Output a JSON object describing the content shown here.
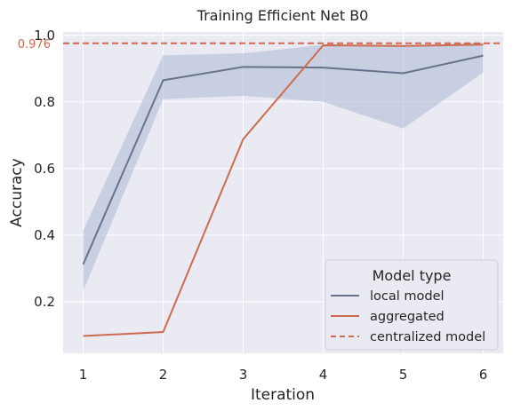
{
  "chart_data": {
    "type": "line",
    "title": "Training Efficient Net B0",
    "xlabel": "Iteration",
    "ylabel": "Accuracy",
    "xlim": [
      0.75,
      6.25
    ],
    "ylim": [
      0.045,
      1.01
    ],
    "x": [
      1,
      2,
      3,
      4,
      5,
      6
    ],
    "x_ticks": [
      1,
      2,
      3,
      4,
      5,
      6
    ],
    "y_ticks": [
      0.2,
      0.4,
      0.6,
      0.8,
      1.0
    ],
    "y_tick_labels": [
      "0.2",
      "0.4",
      "0.6",
      "0.8",
      "1.0"
    ],
    "grid": true,
    "series": [
      {
        "name": "local model",
        "color": "#66738d",
        "values": [
          0.312,
          0.865,
          0.905,
          0.903,
          0.886,
          0.939
        ],
        "band_lower": [
          0.232,
          0.808,
          0.818,
          0.8,
          0.72,
          0.888
        ],
        "band_upper": [
          0.413,
          0.94,
          0.946,
          0.971,
          0.969,
          0.978
        ],
        "band_color": "#b3bcd8"
      },
      {
        "name": "aggregated",
        "color": "#cc6b4f",
        "values": [
          0.097,
          0.109,
          0.688,
          0.97,
          0.968,
          0.972
        ]
      }
    ],
    "reference_line": {
      "name": "centralized model",
      "value": 0.976,
      "label": "0.976",
      "color": "#d2684e"
    },
    "legend": {
      "title": "Model type",
      "position": "lower-right"
    }
  }
}
